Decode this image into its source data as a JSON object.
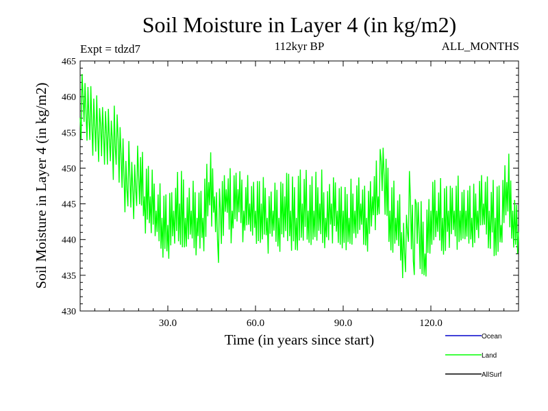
{
  "chart_data": {
    "type": "line",
    "title": "Soil Moisture in Layer 4 (in kg/m2)",
    "subtitle_left": "Expt = tdzd7",
    "subtitle_center": "112kyr BP",
    "subtitle_right": "ALL_MONTHS",
    "xlabel": "Time (in years since start)",
    "ylabel": "Soil Moisture in Layer 4 (in kg/m2)",
    "xlim": [
      0,
      150
    ],
    "ylim": [
      430,
      465
    ],
    "x_ticks": [
      30,
      60,
      90,
      120
    ],
    "x_tick_labels": [
      "30.0",
      "60.0",
      "90.0",
      "120.0"
    ],
    "y_ticks": [
      430,
      435,
      440,
      445,
      450,
      455,
      460,
      465
    ],
    "y_tick_labels": [
      "430",
      "435",
      "440",
      "445",
      "450",
      "455",
      "460",
      "465"
    ],
    "legend": [
      {
        "name": "Ocean",
        "color": "#0000cc"
      },
      {
        "name": "Land",
        "color": "#00ff00"
      },
      {
        "name": "AllSurf",
        "color": "#000000"
      }
    ],
    "series": [
      {
        "name": "Land",
        "color": "#00ff00",
        "x": [
          0,
          1,
          2,
          3,
          4,
          5,
          6,
          7,
          8,
          9,
          10,
          11,
          12,
          13,
          14,
          15,
          16,
          17,
          18,
          19,
          20,
          22,
          24,
          26,
          28,
          30,
          32,
          34,
          36,
          38,
          40,
          42,
          44,
          46,
          47,
          48,
          50,
          52,
          54,
          56,
          58,
          60,
          62,
          64,
          66,
          68,
          70,
          72,
          74,
          76,
          78,
          80,
          82,
          84,
          86,
          88,
          90,
          92,
          94,
          96,
          98,
          100,
          102,
          103,
          104,
          106,
          108,
          110,
          111,
          112,
          113,
          114,
          115,
          116,
          118,
          120,
          122,
          124,
          126,
          128,
          130,
          132,
          134,
          136,
          138,
          140,
          142,
          144,
          146,
          148,
          150
        ],
        "values": [
          457,
          460,
          458,
          457,
          456,
          456,
          455,
          456,
          455,
          455,
          454,
          454,
          453,
          454,
          452,
          449,
          447,
          449,
          447,
          447,
          449,
          446,
          446,
          444,
          443,
          442,
          444,
          445,
          443,
          444,
          443,
          443,
          448,
          446,
          440,
          444,
          447,
          444,
          447,
          444,
          445,
          444,
          445,
          443,
          444,
          443,
          446,
          444,
          443,
          445,
          444,
          444,
          445,
          443,
          445,
          444,
          444,
          443,
          444,
          445,
          443,
          446,
          446,
          451,
          449,
          444,
          443,
          441,
          438,
          441,
          446,
          437,
          445,
          441,
          438,
          444,
          444,
          443,
          444,
          444,
          444,
          444,
          443,
          444,
          445,
          444,
          443,
          442,
          448,
          444,
          441
        ]
      }
    ]
  }
}
